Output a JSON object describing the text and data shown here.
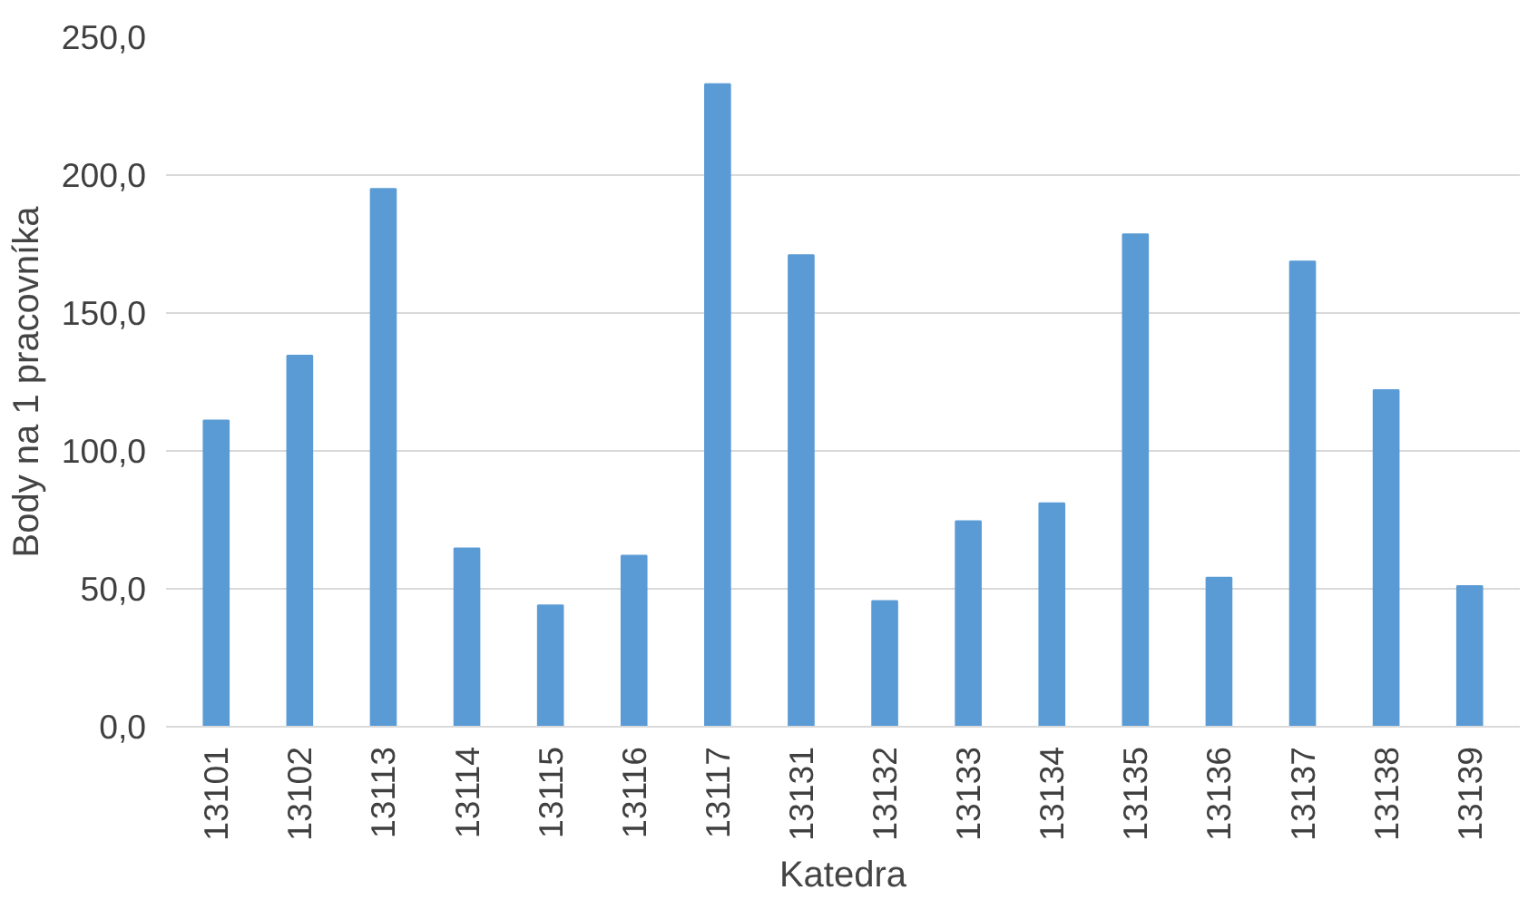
{
  "chart_data": {
    "type": "bar",
    "xlabel": "Katedra",
    "ylabel": "Body na 1 pracovníka",
    "categories": [
      "13101",
      "13102",
      "13113",
      "13114",
      "13115",
      "13116",
      "13117",
      "13131",
      "13132",
      "13133",
      "13134",
      "13135",
      "13136",
      "13137",
      "13138",
      "13139"
    ],
    "values": [
      111,
      134.5,
      195,
      64.6,
      44,
      62,
      233,
      171,
      45.6,
      74.5,
      81,
      178.5,
      54,
      168.7,
      122,
      51
    ],
    "color": "#5b9bd5",
    "ylim": [
      0,
      250
    ],
    "yticks": [
      {
        "value": 0,
        "label": "0,0"
      },
      {
        "value": 50,
        "label": "50,0"
      },
      {
        "value": 100,
        "label": "100,0"
      },
      {
        "value": 150,
        "label": "150,0"
      },
      {
        "value": 200,
        "label": "200,0"
      },
      {
        "value": 250,
        "label": "250,0"
      }
    ],
    "grid": "y"
  }
}
